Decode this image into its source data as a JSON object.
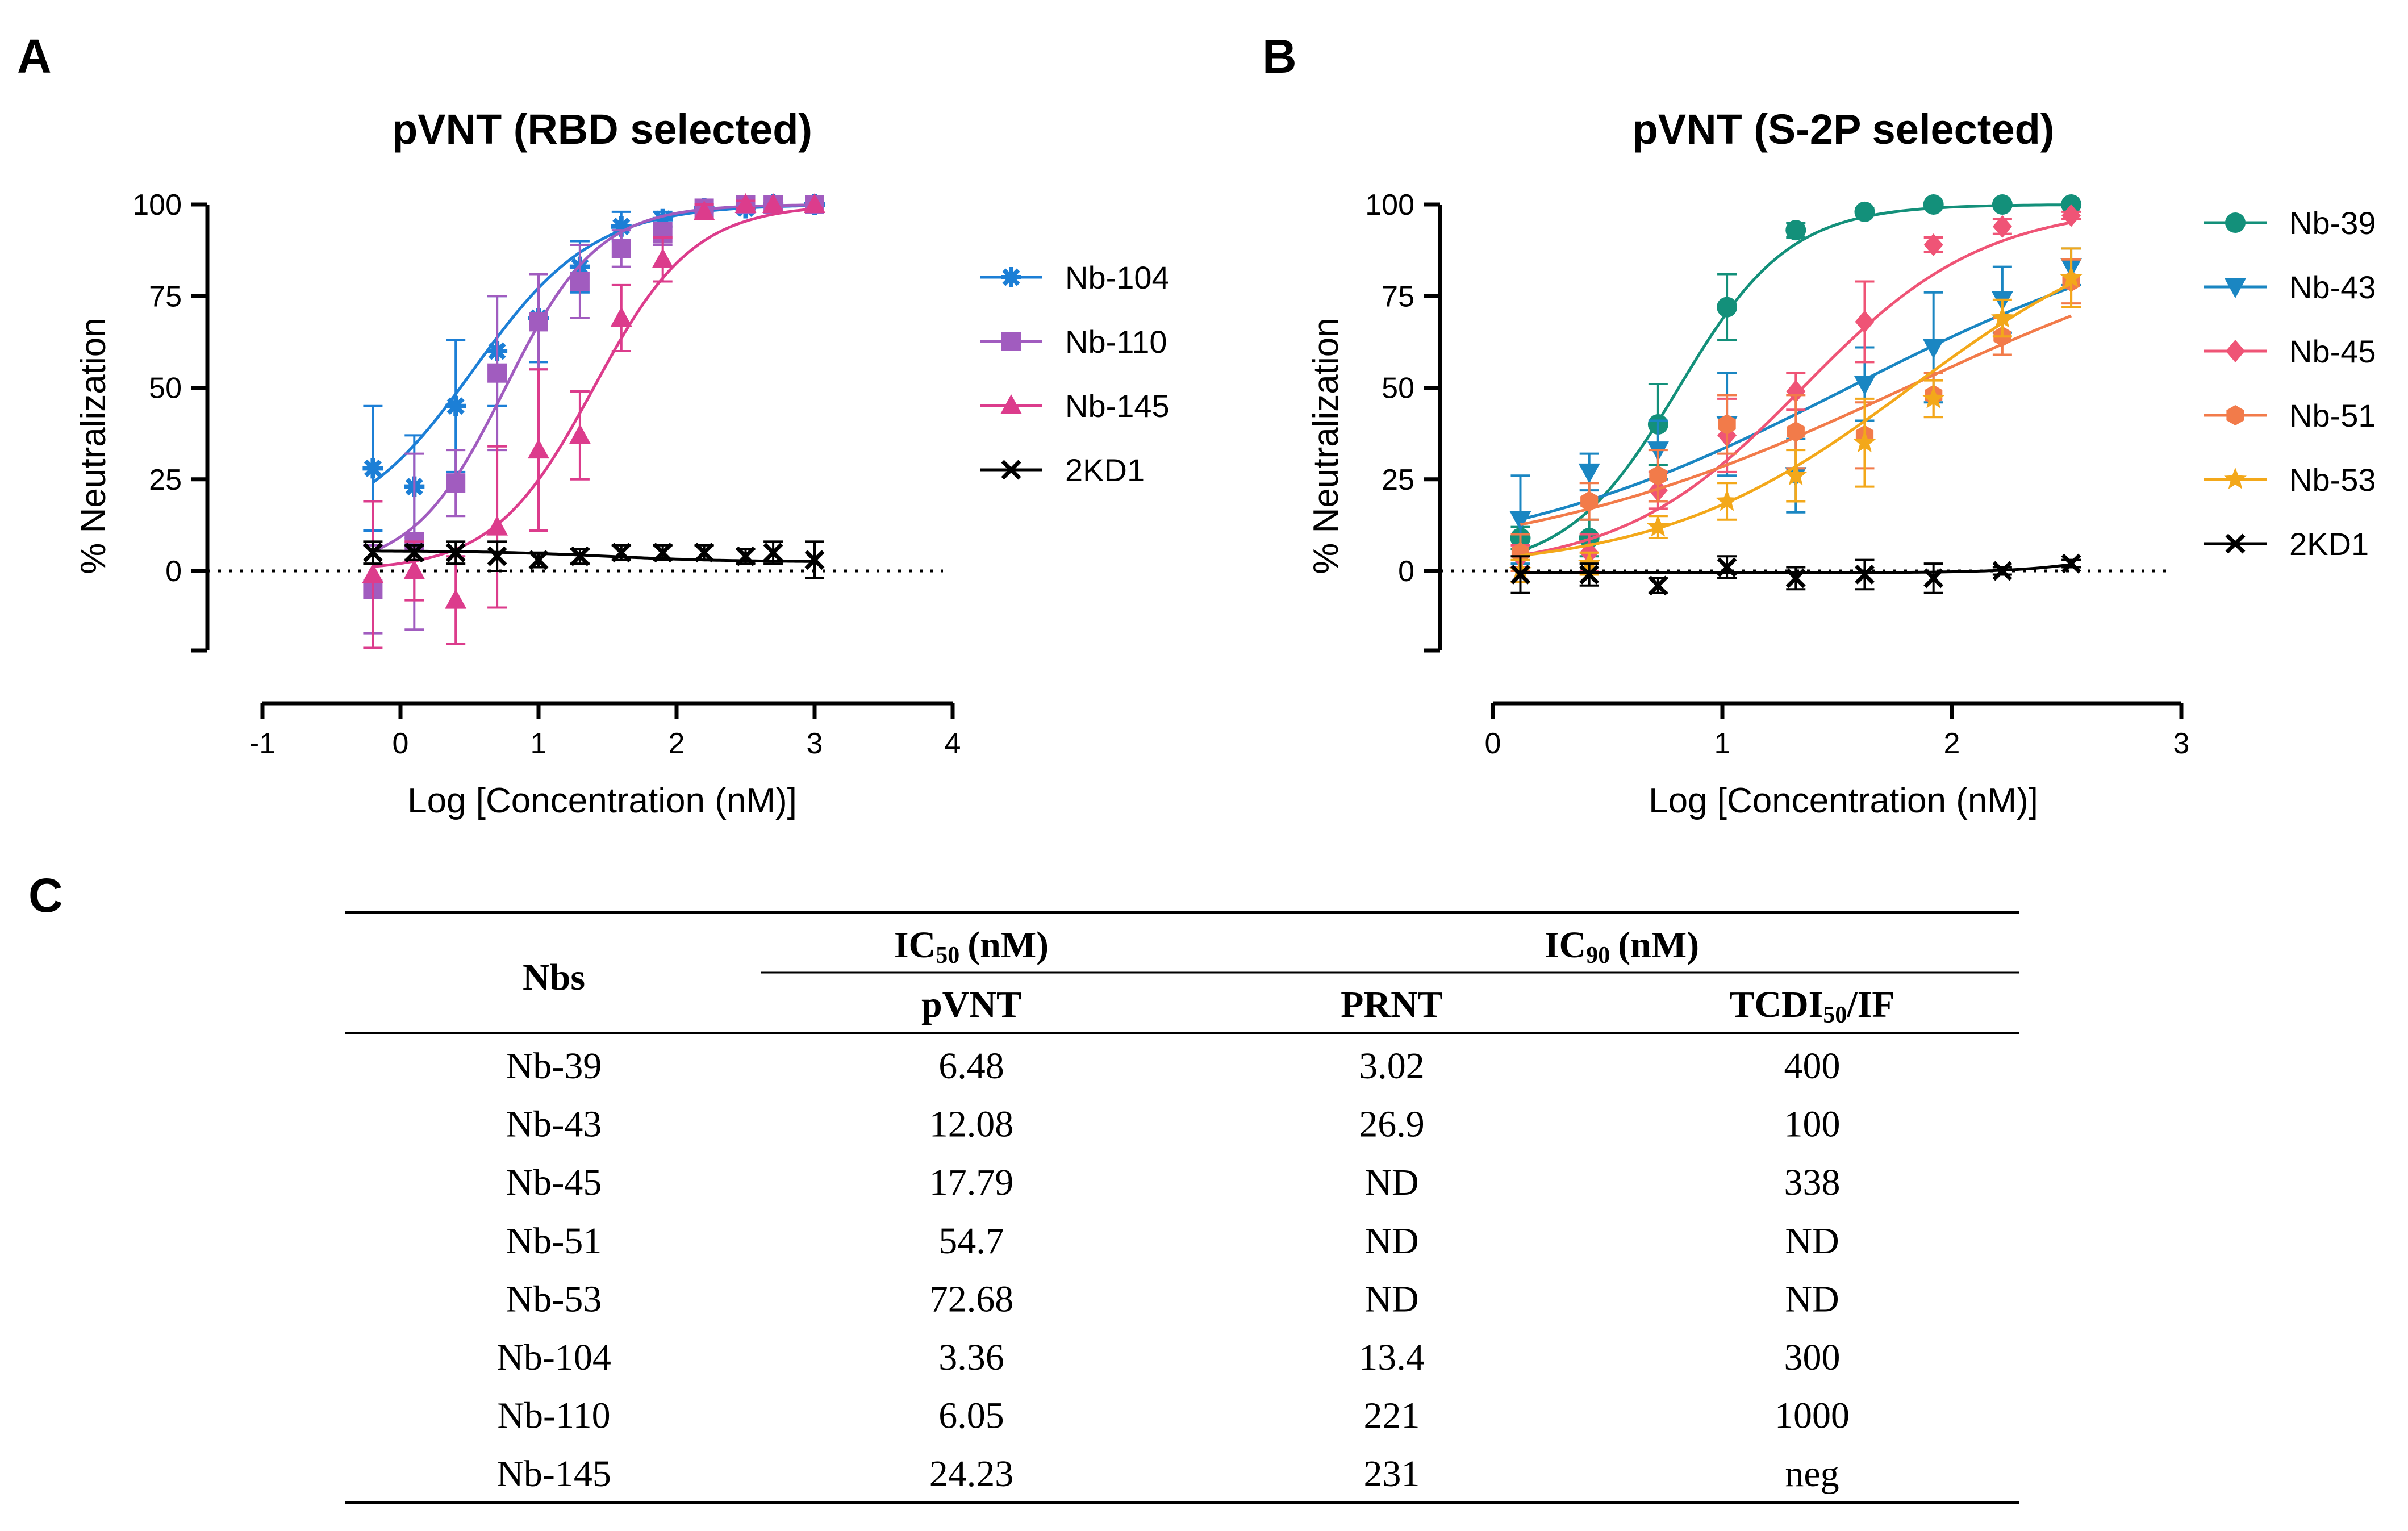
{
  "panel_labels": {
    "a": "A",
    "b": "B",
    "c": "C"
  },
  "chart_data": [
    {
      "type": "line",
      "id": "A",
      "title": "pVNT (RBD selected)",
      "xlabel": "Log [Concentration (nM)]",
      "ylabel": "% Neutralization",
      "xlim": [
        -1,
        4
      ],
      "ylim": [
        -20,
        100
      ],
      "xticks": [
        "-1",
        "0",
        "1",
        "2",
        "3",
        "4"
      ],
      "yticks": [
        "0",
        "25",
        "50",
        "75",
        "100"
      ],
      "legend_position": "right",
      "reference_line": 0,
      "series": [
        {
          "name": "Nb-104",
          "color": "#1c7fd6",
          "marker": "asterisk",
          "x": [
            -0.2,
            0.1,
            0.4,
            0.7,
            1.0,
            1.3,
            1.6,
            1.9,
            2.2,
            2.5,
            2.7,
            3.0
          ],
          "y": [
            28,
            23,
            45,
            60,
            69,
            83,
            94,
            96,
            99,
            99,
            100,
            100
          ],
          "err": [
            17,
            14,
            18,
            15,
            12,
            7,
            4,
            2,
            1,
            1,
            0,
            0
          ],
          "fit": {
            "bottom": 10,
            "top": 100,
            "logec50": 0.53,
            "hill": 1.0
          }
        },
        {
          "name": "Nb-110",
          "color": "#a15cbf",
          "marker": "square",
          "x": [
            -0.2,
            0.1,
            0.4,
            0.7,
            1.0,
            1.3,
            1.6,
            1.9,
            2.2,
            2.5,
            2.7,
            3.0
          ],
          "y": [
            -5,
            8,
            24,
            54,
            68,
            79,
            88,
            92,
            99,
            100,
            100,
            100
          ],
          "err": [
            12,
            24,
            9,
            21,
            13,
            10,
            5,
            3,
            1,
            0,
            0,
            0
          ],
          "fit": {
            "bottom": 0,
            "top": 100,
            "logec50": 0.76,
            "hill": 1.3
          }
        },
        {
          "name": "Nb-145",
          "color": "#dc3c8c",
          "marker": "triangle",
          "x": [
            -0.2,
            0.1,
            0.4,
            0.7,
            1.0,
            1.3,
            1.6,
            1.9,
            2.2,
            2.5,
            2.7,
            3.0
          ],
          "y": [
            -1,
            0,
            -8,
            12,
            33,
            37,
            69,
            85,
            98,
            100,
            100,
            100
          ],
          "err": [
            20,
            8,
            12,
            22,
            22,
            12,
            9,
            6,
            2,
            1,
            0,
            0
          ],
          "fit": {
            "bottom": 0,
            "top": 100,
            "logec50": 1.4,
            "hill": 1.2
          }
        },
        {
          "name": "2KD1",
          "color": "#000000",
          "marker": "x",
          "x": [
            -0.2,
            0.1,
            0.4,
            0.7,
            1.0,
            1.3,
            1.6,
            1.9,
            2.2,
            2.5,
            2.7,
            3.0
          ],
          "y": [
            5,
            5,
            5,
            4,
            3,
            4,
            5,
            5,
            5,
            4,
            5,
            3
          ],
          "err": [
            3,
            2,
            3,
            4,
            2,
            2,
            2,
            2,
            2,
            2,
            3,
            5
          ],
          "fit": {
            "bottom": 5.5,
            "top": 2.5,
            "logec50": 1.5,
            "hill": 1.0
          }
        }
      ]
    },
    {
      "type": "line",
      "id": "B",
      "title": "pVNT (S-2P selected)",
      "xlabel": "Log [Concentration (nM)]",
      "ylabel": "% Neutralization",
      "xlim": [
        0,
        3
      ],
      "ylim": [
        -20,
        100
      ],
      "xticks": [
        "0",
        "1",
        "2",
        "3"
      ],
      "yticks": [
        "0",
        "25",
        "50",
        "75",
        "100"
      ],
      "legend_position": "right",
      "reference_line": 0,
      "series": [
        {
          "name": "Nb-39",
          "color": "#13907a",
          "marker": "circle",
          "x": [
            0.12,
            0.42,
            0.72,
            1.02,
            1.32,
            1.62,
            1.92,
            2.22,
            2.52
          ],
          "y": [
            9,
            9,
            40,
            72,
            93,
            98,
            100,
            100,
            100
          ],
          "err": [
            3,
            5,
            11,
            9,
            2,
            1,
            0,
            0,
            0
          ],
          "fit": {
            "bottom": 0,
            "top": 100,
            "logec50": 0.81,
            "hill": 1.8
          }
        },
        {
          "name": "Nb-43",
          "color": "#1a86c2",
          "marker": "triangle-down",
          "x": [
            0.12,
            0.42,
            0.72,
            1.02,
            1.32,
            1.62,
            1.92,
            2.22,
            2.52
          ],
          "y": [
            14,
            27,
            33,
            40,
            26,
            51,
            61,
            74,
            83
          ],
          "err": [
            12,
            5,
            8,
            14,
            10,
            10,
            15,
            9,
            5
          ],
          "fit": {
            "bottom": 0,
            "top": 100,
            "logec50": 1.55,
            "hill": 0.55
          }
        },
        {
          "name": "Nb-45",
          "color": "#ef5476",
          "marker": "diamond",
          "x": [
            0.12,
            0.42,
            0.72,
            1.02,
            1.32,
            1.62,
            1.92,
            2.22,
            2.52
          ],
          "y": [
            4,
            5,
            22,
            37,
            49,
            68,
            89,
            94,
            97
          ],
          "err": [
            3,
            5,
            5,
            10,
            5,
            11,
            2,
            2,
            1
          ],
          "fit": {
            "bottom": 0,
            "top": 100,
            "logec50": 1.35,
            "hill": 1.1
          }
        },
        {
          "name": "Nb-51",
          "color": "#f27b4a",
          "marker": "hexagon",
          "x": [
            0.12,
            0.42,
            0.72,
            1.02,
            1.32,
            1.62,
            1.92,
            2.22,
            2.52
          ],
          "y": [
            5,
            19,
            26,
            40,
            38,
            37,
            48,
            64,
            79
          ],
          "err": [
            5,
            5,
            7,
            8,
            10,
            9,
            6,
            5,
            6
          ],
          "fit": {
            "bottom": 0,
            "top": 100,
            "logec50": 1.8,
            "hill": 0.5
          }
        },
        {
          "name": "Nb-53",
          "color": "#f3a81a",
          "marker": "star",
          "x": [
            0.12,
            0.42,
            0.72,
            1.02,
            1.32,
            1.62,
            1.92,
            2.22,
            2.52
          ],
          "y": [
            0,
            2,
            12,
            19,
            26,
            35,
            47,
            69,
            80
          ],
          "err": [
            3,
            3,
            3,
            5,
            7,
            12,
            5,
            5,
            8
          ],
          "fit": {
            "bottom": 0,
            "top": 100,
            "logec50": 1.82,
            "hill": 0.8
          }
        },
        {
          "name": "2KD1",
          "color": "#000000",
          "marker": "x",
          "x": [
            0.12,
            0.42,
            0.72,
            1.02,
            1.32,
            1.62,
            1.92,
            2.22,
            2.52
          ],
          "y": [
            -1,
            -1,
            -4,
            1,
            -2,
            -1,
            -2,
            0,
            2
          ],
          "err": [
            5,
            3,
            2,
            3,
            3,
            4,
            4,
            1,
            1
          ],
          "fit": {
            "bottom": -0.5,
            "top": 10,
            "logec50": 2.8,
            "hill": 2.0
          }
        }
      ]
    },
    {
      "type": "table",
      "id": "C",
      "headers": {
        "nbs": "Nbs",
        "ic50_main": "IC",
        "ic50_sub": "50",
        "ic50_unit": "(nM)",
        "ic90_main": "IC",
        "ic90_sub": "90",
        "ic90_unit": "(nM)",
        "pvnt": "pVNT",
        "prnt": "PRNT",
        "tcdi_main": "TCDI",
        "tcdi_sub": "50",
        "tcdi_unit": "/IF"
      },
      "rows": [
        [
          "Nb-39",
          "6.48",
          "3.02",
          "400"
        ],
        [
          "Nb-43",
          "12.08",
          "26.9",
          "100"
        ],
        [
          "Nb-45",
          "17.79",
          "ND",
          "338"
        ],
        [
          "Nb-51",
          "54.7",
          "ND",
          "ND"
        ],
        [
          "Nb-53",
          "72.68",
          "ND",
          "ND"
        ],
        [
          "Nb-104",
          "3.36",
          "13.4",
          "300"
        ],
        [
          "Nb-110",
          "6.05",
          "221",
          "1000"
        ],
        [
          "Nb-145",
          "24.23",
          "231",
          "neg"
        ]
      ]
    }
  ]
}
